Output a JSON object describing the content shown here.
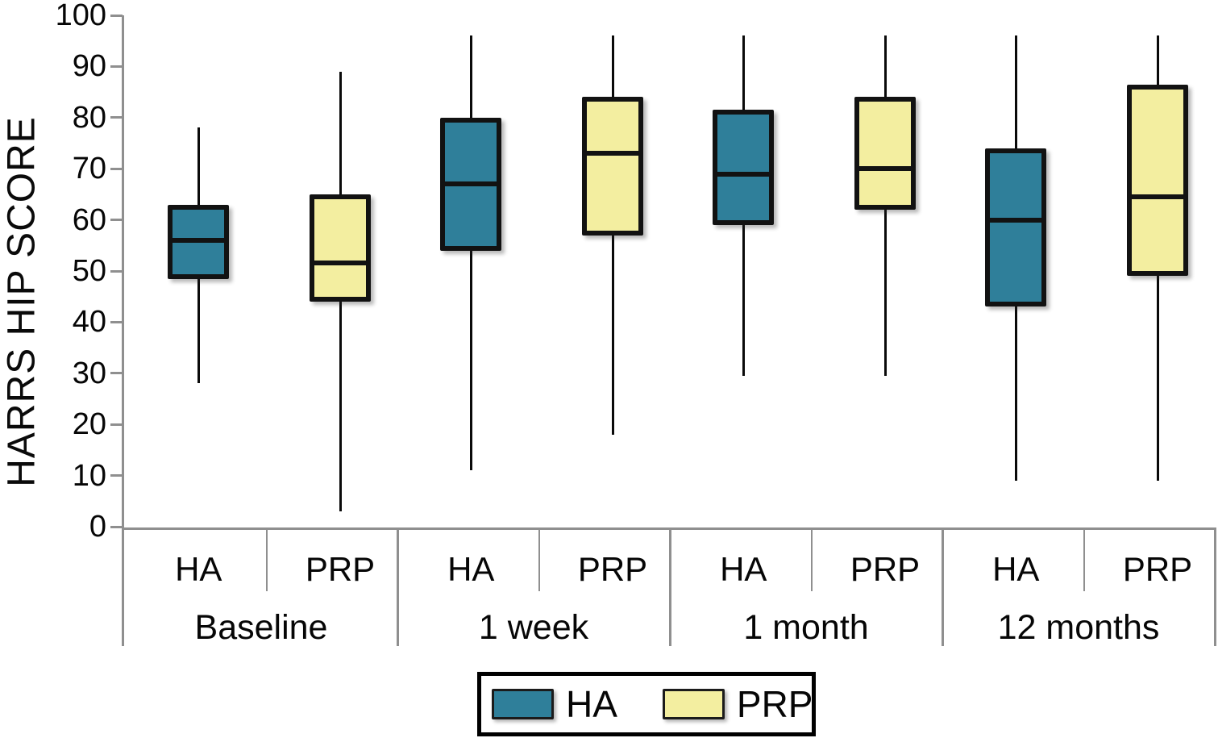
{
  "chart_data": {
    "type": "boxplot",
    "title": "",
    "ylabel": "HARRS HIP SCORE",
    "xlabel": "",
    "ylim": [
      0,
      100
    ],
    "yticks": [
      0,
      10,
      20,
      30,
      40,
      50,
      60,
      70,
      80,
      90,
      100
    ],
    "grid": false,
    "groups": [
      "Baseline",
      "1 week",
      "1 month",
      "12 months"
    ],
    "sub_labels": [
      "HA",
      "PRP"
    ],
    "series": [
      {
        "name": "HA",
        "color": "#2f7f9a",
        "boxes": [
          {
            "group": "Baseline",
            "min": 28,
            "q1": 48.5,
            "median": 56,
            "q3": 63,
            "max": 78
          },
          {
            "group": "1 week",
            "min": 11,
            "q1": 54,
            "median": 67,
            "q3": 80,
            "max": 96
          },
          {
            "group": "1 month",
            "min": 29.5,
            "q1": 59,
            "median": 69,
            "q3": 81.5,
            "max": 96
          },
          {
            "group": "12 months",
            "min": 9,
            "q1": 43,
            "median": 60,
            "q3": 74,
            "max": 96
          }
        ]
      },
      {
        "name": "PRP",
        "color": "#f3eea0",
        "boxes": [
          {
            "group": "Baseline",
            "min": 3,
            "q1": 44,
            "median": 51.5,
            "q3": 65,
            "max": 89
          },
          {
            "group": "1 week",
            "min": 18,
            "q1": 57,
            "median": 73,
            "q3": 84,
            "max": 96
          },
          {
            "group": "1 month",
            "min": 29.5,
            "q1": 62,
            "median": 70,
            "q3": 84,
            "max": 96
          },
          {
            "group": "12 months",
            "min": 9,
            "q1": 49,
            "median": 64.5,
            "q3": 86.5,
            "max": 96
          }
        ]
      }
    ],
    "legend": {
      "position": "bottom-center",
      "entries": [
        {
          "label": "HA",
          "color": "#2f7f9a"
        },
        {
          "label": "PRP",
          "color": "#f3eea0"
        }
      ]
    },
    "colors": {
      "box_border": "#121212",
      "median": "#121212",
      "whisker": "#0a0a0a",
      "axis": "#8f8f8f",
      "text": "#000000",
      "background": "#ffffff"
    }
  }
}
